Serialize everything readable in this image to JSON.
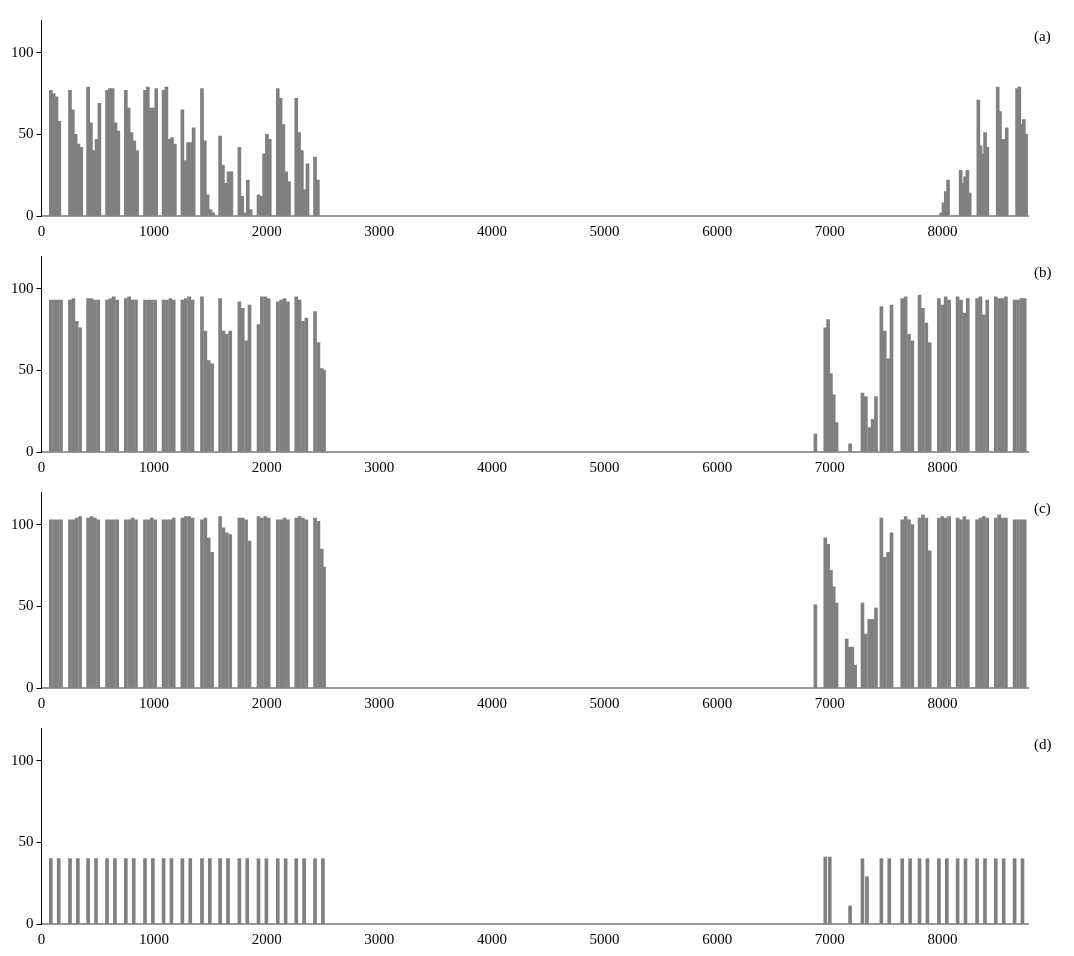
{
  "chart_data": [
    {
      "type": "bar",
      "title": "(a)",
      "color": "#808080",
      "xlim": [
        0,
        8760
      ],
      "ylim": [
        0,
        120
      ],
      "xticks": [
        0,
        1000,
        2000,
        3000,
        4000,
        5000,
        6000,
        7000,
        8000
      ],
      "yticks": [
        0,
        50,
        100
      ],
      "grid": false,
      "legend": false,
      "x": [
        83,
        108,
        133,
        158,
        253,
        278,
        303,
        328,
        353,
        414,
        439,
        464,
        489,
        514,
        582,
        607,
        632,
        657,
        682,
        749,
        774,
        799,
        824,
        849,
        919,
        944,
        969,
        994,
        1019,
        1084,
        1109,
        1134,
        1159,
        1184,
        1251,
        1276,
        1301,
        1326,
        1351,
        1425,
        1450,
        1475,
        1500,
        1525,
        1586,
        1611,
        1636,
        1661,
        1686,
        1757,
        1782,
        1807,
        1832,
        1857,
        1927,
        1952,
        1977,
        2002,
        2027,
        2098,
        2123,
        2148,
        2173,
        2198,
        2262,
        2287,
        2312,
        2337,
        2362,
        2429,
        2454,
        7990,
        8010,
        8030,
        8050,
        8162,
        8182,
        8202,
        8222,
        8242,
        8319,
        8339,
        8359,
        8379,
        8399,
        8491,
        8511,
        8531,
        8551,
        8571,
        8663,
        8683,
        8703,
        8723,
        8743
      ],
      "values": [
        77,
        75,
        73,
        58,
        77,
        65,
        50,
        44,
        42,
        79,
        57,
        40,
        47,
        69,
        77,
        78,
        78,
        57,
        52,
        77,
        66,
        51,
        46,
        40,
        77,
        79,
        66,
        66,
        78,
        77,
        79,
        47,
        48,
        44,
        65,
        34,
        45,
        45,
        54,
        78,
        46,
        13,
        4,
        2,
        49,
        31,
        20,
        27,
        27,
        42,
        12,
        2,
        22,
        4,
        13,
        12,
        38,
        50,
        47,
        78,
        72,
        56,
        27,
        21,
        72,
        51,
        40,
        16,
        32,
        36,
        22,
        2,
        8,
        15,
        22,
        28,
        20,
        24,
        28,
        14,
        71,
        43,
        38,
        51,
        42,
        79,
        64,
        47,
        47,
        54,
        78,
        79,
        56,
        59,
        50
      ]
    },
    {
      "type": "bar",
      "title": "(b)",
      "color": "#808080",
      "xlim": [
        0,
        8760
      ],
      "ylim": [
        0,
        120
      ],
      "xticks": [
        0,
        1000,
        2000,
        3000,
        4000,
        5000,
        6000,
        7000,
        8000
      ],
      "yticks": [
        0,
        50,
        100
      ],
      "grid": false,
      "legend": false,
      "x": [
        83,
        113,
        143,
        173,
        253,
        283,
        313,
        343,
        414,
        444,
        474,
        504,
        582,
        612,
        642,
        672,
        749,
        779,
        809,
        839,
        919,
        949,
        979,
        1009,
        1084,
        1114,
        1144,
        1174,
        1251,
        1281,
        1311,
        1341,
        1425,
        1455,
        1485,
        1515,
        1586,
        1616,
        1646,
        1676,
        1757,
        1787,
        1817,
        1847,
        1927,
        1957,
        1987,
        2017,
        2098,
        2128,
        2158,
        2188,
        2262,
        2292,
        2322,
        2352,
        2429,
        2459,
        2489,
        2509,
        6872,
        6960,
        6985,
        7010,
        7035,
        7060,
        7180,
        7290,
        7320,
        7350,
        7380,
        7410,
        7458,
        7488,
        7518,
        7548,
        7643,
        7673,
        7703,
        7733,
        7797,
        7827,
        7857,
        7887,
        7969,
        7999,
        8029,
        8059,
        8135,
        8165,
        8195,
        8225,
        8308,
        8338,
        8368,
        8398,
        8474,
        8504,
        8534,
        8564,
        8641,
        8671,
        8701,
        8731
      ],
      "values": [
        93,
        93,
        93,
        93,
        93,
        94,
        80,
        76,
        94,
        94,
        93,
        93,
        93,
        94,
        95,
        93,
        94,
        95,
        93,
        93,
        93,
        93,
        93,
        93,
        93,
        93,
        94,
        93,
        93,
        94,
        95,
        93,
        95,
        74,
        56,
        54,
        94,
        74,
        72,
        74,
        92,
        88,
        68,
        90,
        78,
        95,
        95,
        94,
        92,
        93,
        94,
        92,
        95,
        93,
        80,
        82,
        86,
        67,
        51,
        50,
        11,
        76,
        81,
        48,
        35,
        18,
        5,
        36,
        34,
        15,
        20,
        34,
        89,
        74,
        57,
        90,
        94,
        95,
        72,
        68,
        96,
        88,
        79,
        67,
        94,
        90,
        95,
        93,
        95,
        93,
        85,
        94,
        94,
        95,
        84,
        93,
        95,
        94,
        94,
        95,
        93,
        93,
        94,
        94
      ]
    },
    {
      "type": "bar",
      "title": "(c)",
      "color": "#808080",
      "xlim": [
        0,
        8760
      ],
      "ylim": [
        0,
        120
      ],
      "xticks": [
        0,
        1000,
        2000,
        3000,
        4000,
        5000,
        6000,
        7000,
        8000
      ],
      "yticks": [
        0,
        50,
        100
      ],
      "grid": false,
      "legend": false,
      "x": [
        83,
        113,
        143,
        173,
        253,
        283,
        313,
        343,
        414,
        444,
        474,
        504,
        582,
        612,
        642,
        672,
        749,
        779,
        809,
        839,
        919,
        949,
        979,
        1009,
        1084,
        1114,
        1144,
        1174,
        1251,
        1281,
        1311,
        1341,
        1425,
        1455,
        1485,
        1515,
        1586,
        1616,
        1646,
        1676,
        1757,
        1787,
        1817,
        1847,
        1927,
        1957,
        1987,
        2017,
        2098,
        2128,
        2158,
        2188,
        2262,
        2292,
        2322,
        2352,
        2429,
        2459,
        2489,
        2509,
        6872,
        6960,
        6985,
        7010,
        7035,
        7060,
        7150,
        7175,
        7200,
        7225,
        7290,
        7320,
        7350,
        7380,
        7410,
        7458,
        7488,
        7518,
        7548,
        7643,
        7673,
        7703,
        7733,
        7797,
        7827,
        7857,
        7887,
        7969,
        7999,
        8029,
        8059,
        8135,
        8165,
        8195,
        8225,
        8308,
        8338,
        8368,
        8398,
        8474,
        8504,
        8534,
        8564,
        8641,
        8671,
        8701,
        8731
      ],
      "values": [
        103,
        103,
        103,
        103,
        103,
        103,
        104,
        105,
        104,
        105,
        104,
        103,
        103,
        103,
        103,
        103,
        103,
        103,
        104,
        103,
        103,
        103,
        104,
        103,
        103,
        103,
        103,
        104,
        104,
        105,
        105,
        104,
        103,
        104,
        92,
        83,
        105,
        98,
        95,
        94,
        104,
        104,
        103,
        90,
        105,
        104,
        105,
        104,
        103,
        103,
        104,
        103,
        104,
        105,
        104,
        103,
        104,
        102,
        85,
        74,
        51,
        92,
        88,
        72,
        62,
        52,
        30,
        25,
        25,
        14,
        52,
        33,
        42,
        42,
        49,
        104,
        80,
        83,
        95,
        103,
        105,
        103,
        100,
        104,
        106,
        104,
        84,
        104,
        105,
        104,
        105,
        104,
        103,
        105,
        103,
        103,
        104,
        105,
        104,
        104,
        106,
        104,
        104,
        103,
        103,
        103,
        103
      ]
    },
    {
      "type": "bar",
      "title": "(d)",
      "color": "#808080",
      "xlim": [
        0,
        8760
      ],
      "ylim": [
        0,
        120
      ],
      "xticks": [
        0,
        1000,
        2000,
        3000,
        4000,
        5000,
        6000,
        7000,
        8000
      ],
      "yticks": [
        0,
        50,
        100
      ],
      "grid": false,
      "legend": false,
      "x": [
        83,
        153,
        253,
        323,
        414,
        484,
        582,
        652,
        749,
        819,
        919,
        989,
        1084,
        1154,
        1251,
        1321,
        1425,
        1495,
        1586,
        1656,
        1757,
        1827,
        1927,
        1997,
        2098,
        2168,
        2262,
        2332,
        2429,
        2499,
        6960,
        7000,
        7180,
        7290,
        7330,
        7458,
        7528,
        7643,
        7713,
        7797,
        7867,
        7969,
        8039,
        8135,
        8205,
        8308,
        8378,
        8474,
        8544,
        8641,
        8711
      ],
      "values": [
        40,
        40,
        40,
        40,
        40,
        40,
        40,
        40,
        40,
        40,
        40,
        40,
        40,
        40,
        40,
        40,
        40,
        40,
        40,
        40,
        40,
        40,
        40,
        40,
        40,
        40,
        40,
        40,
        40,
        40,
        41,
        41,
        11,
        40,
        29,
        40,
        40,
        40,
        40,
        40,
        40,
        40,
        40,
        40,
        40,
        40,
        40,
        40,
        40,
        40,
        40
      ]
    }
  ]
}
